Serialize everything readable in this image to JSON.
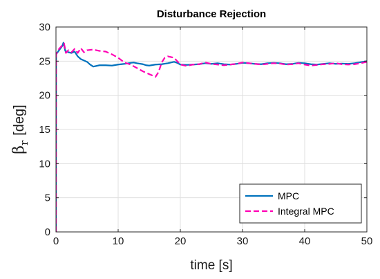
{
  "chart_data": {
    "type": "line",
    "title": "Disturbance Rejection",
    "xlabel": "time [s]",
    "ylabel": {
      "symbol": "β",
      "subscript": "r",
      "unit": "[deg]"
    },
    "xlim": [
      0,
      50
    ],
    "ylim": [
      0,
      30
    ],
    "xticks": [
      0,
      10,
      20,
      30,
      40,
      50
    ],
    "yticks": [
      0,
      5,
      10,
      15,
      20,
      25,
      30
    ],
    "grid": true,
    "legend": "bottom-right",
    "series": [
      {
        "name": "MPC",
        "color": "#0072BD",
        "style": "solid",
        "points": [
          [
            0,
            0
          ],
          [
            0.02,
            26
          ],
          [
            0.5,
            26.6
          ],
          [
            1,
            27.2
          ],
          [
            1.2,
            27.7
          ],
          [
            1.5,
            26.5
          ],
          [
            2,
            26.3
          ],
          [
            2.5,
            26.2
          ],
          [
            3,
            26.4
          ],
          [
            3.5,
            25.7
          ],
          [
            4,
            25.3
          ],
          [
            5,
            24.9
          ],
          [
            5.5,
            24.5
          ],
          [
            6,
            24.2
          ],
          [
            6.5,
            24.3
          ],
          [
            7,
            24.4
          ],
          [
            8,
            24.4
          ],
          [
            9,
            24.35
          ],
          [
            10,
            24.5
          ],
          [
            11,
            24.6
          ],
          [
            12,
            24.75
          ],
          [
            12.5,
            24.8
          ],
          [
            13,
            24.7
          ],
          [
            14,
            24.55
          ],
          [
            14.5,
            24.4
          ],
          [
            15,
            24.35
          ],
          [
            16,
            24.5
          ],
          [
            17,
            24.55
          ],
          [
            18,
            24.7
          ],
          [
            19,
            24.9
          ],
          [
            19.5,
            24.75
          ],
          [
            20,
            24.5
          ],
          [
            21,
            24.45
          ],
          [
            22,
            24.5
          ],
          [
            23,
            24.55
          ],
          [
            24,
            24.7
          ],
          [
            25,
            24.6
          ],
          [
            26,
            24.7
          ],
          [
            27,
            24.55
          ],
          [
            28,
            24.5
          ],
          [
            29,
            24.6
          ],
          [
            30,
            24.75
          ],
          [
            31,
            24.7
          ],
          [
            32,
            24.6
          ],
          [
            33,
            24.55
          ],
          [
            34,
            24.7
          ],
          [
            35,
            24.75
          ],
          [
            36,
            24.7
          ],
          [
            37,
            24.55
          ],
          [
            38,
            24.6
          ],
          [
            39,
            24.75
          ],
          [
            40,
            24.7
          ],
          [
            41,
            24.55
          ],
          [
            42,
            24.5
          ],
          [
            43,
            24.6
          ],
          [
            44,
            24.7
          ],
          [
            45,
            24.6
          ],
          [
            46,
            24.65
          ],
          [
            47,
            24.6
          ],
          [
            48,
            24.7
          ],
          [
            49,
            24.85
          ],
          [
            50,
            25.0
          ]
        ]
      },
      {
        "name": "Integral MPC",
        "color": "#FF00B4",
        "style": "dashed",
        "points": [
          [
            0,
            0
          ],
          [
            0.02,
            26
          ],
          [
            0.5,
            26.8
          ],
          [
            1,
            27.3
          ],
          [
            1.3,
            27.6
          ],
          [
            1.6,
            26.2
          ],
          [
            2,
            26.6
          ],
          [
            2.5,
            26.3
          ],
          [
            3,
            26.8
          ],
          [
            3.5,
            26.2
          ],
          [
            4,
            26.9
          ],
          [
            4.5,
            26.3
          ],
          [
            5,
            26.6
          ],
          [
            6,
            26.7
          ],
          [
            7,
            26.5
          ],
          [
            8,
            26.4
          ],
          [
            9,
            26.0
          ],
          [
            10,
            25.5
          ],
          [
            11,
            24.8
          ],
          [
            12,
            24.5
          ],
          [
            13,
            24.0
          ],
          [
            14,
            23.5
          ],
          [
            15,
            23.1
          ],
          [
            16,
            22.7
          ],
          [
            16.5,
            23.4
          ],
          [
            17,
            24.8
          ],
          [
            17.5,
            25.5
          ],
          [
            18,
            25.7
          ],
          [
            19,
            25.5
          ],
          [
            19.5,
            25.0
          ],
          [
            20,
            24.5
          ],
          [
            21,
            24.3
          ],
          [
            22,
            24.5
          ],
          [
            23,
            24.55
          ],
          [
            24,
            24.8
          ],
          [
            25,
            24.6
          ],
          [
            26,
            24.5
          ],
          [
            27,
            24.4
          ],
          [
            28,
            24.5
          ],
          [
            29,
            24.6
          ],
          [
            30,
            24.8
          ],
          [
            31,
            24.7
          ],
          [
            32,
            24.6
          ],
          [
            33,
            24.5
          ],
          [
            34,
            24.6
          ],
          [
            35,
            24.7
          ],
          [
            36,
            24.65
          ],
          [
            37,
            24.5
          ],
          [
            38,
            24.55
          ],
          [
            39,
            24.7
          ],
          [
            40,
            24.5
          ],
          [
            41,
            24.35
          ],
          [
            42,
            24.45
          ],
          [
            43,
            24.55
          ],
          [
            44,
            24.6
          ],
          [
            45,
            24.7
          ],
          [
            46,
            24.55
          ],
          [
            47,
            24.5
          ],
          [
            48,
            24.55
          ],
          [
            49,
            24.7
          ],
          [
            50,
            24.9
          ]
        ]
      }
    ]
  }
}
